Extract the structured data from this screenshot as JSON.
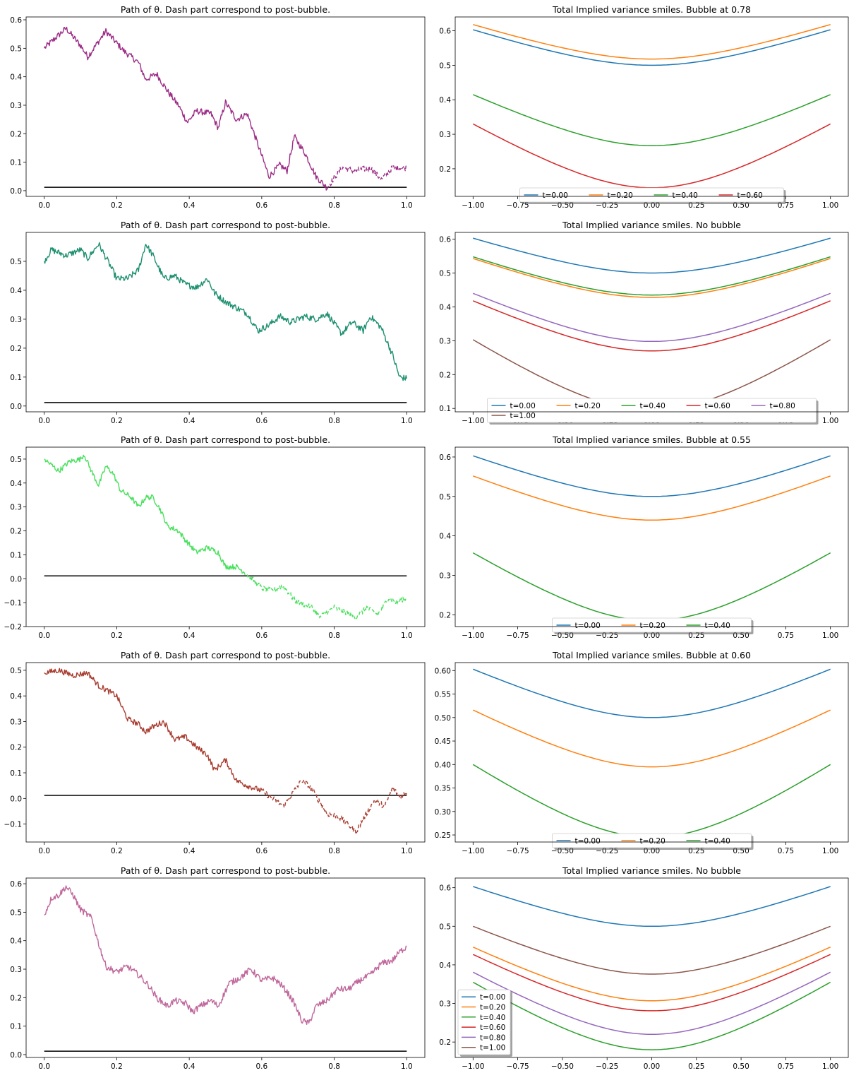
{
  "colors": {
    "C0": "#1f77b4",
    "C1": "#ff7f0e",
    "C2": "#2ca02c",
    "C3": "#d62728",
    "C4": "#9467bd",
    "C5": "#8c564b",
    "threshold": "#000000"
  },
  "chart_data": [
    {
      "type": "line",
      "panel": "path",
      "row": 0,
      "title": "Path of θ. Dash part correspond to post-bubble.",
      "xlim": [
        -0.05,
        1.05
      ],
      "ylim": [
        -0.02,
        0.61
      ],
      "xticks": [
        "0.0",
        "0.2",
        "0.4",
        "0.6",
        "0.8",
        "1.0"
      ],
      "yticks": [
        "0.0",
        "0.1",
        "0.2",
        "0.3",
        "0.4",
        "0.5",
        "0.6"
      ],
      "path_color": "#9c2c86",
      "bubble_at": 0.78,
      "threshold": 0.012,
      "waypoints": [
        [
          0,
          0.5
        ],
        [
          0.06,
          0.57
        ],
        [
          0.1,
          0.51
        ],
        [
          0.12,
          0.47
        ],
        [
          0.17,
          0.56
        ],
        [
          0.22,
          0.49
        ],
        [
          0.26,
          0.45
        ],
        [
          0.28,
          0.39
        ],
        [
          0.31,
          0.41
        ],
        [
          0.34,
          0.35
        ],
        [
          0.37,
          0.3
        ],
        [
          0.395,
          0.24
        ],
        [
          0.42,
          0.28
        ],
        [
          0.46,
          0.27
        ],
        [
          0.48,
          0.22
        ],
        [
          0.5,
          0.31
        ],
        [
          0.53,
          0.25
        ],
        [
          0.56,
          0.27
        ],
        [
          0.59,
          0.16
        ],
        [
          0.62,
          0.05
        ],
        [
          0.65,
          0.09
        ],
        [
          0.67,
          0.07
        ],
        [
          0.69,
          0.19
        ],
        [
          0.72,
          0.13
        ],
        [
          0.75,
          0.05
        ],
        [
          0.78,
          0.01
        ],
        [
          0.82,
          0.08
        ],
        [
          0.86,
          0.07
        ],
        [
          0.9,
          0.08
        ],
        [
          0.93,
          0.04
        ],
        [
          0.96,
          0.08
        ],
        [
          1.0,
          0.08
        ]
      ]
    },
    {
      "type": "line",
      "panel": "smile",
      "row": 0,
      "title": "Total Implied variance smiles. Bubble at 0.78",
      "xlim": [
        -1.1,
        1.1
      ],
      "ylim": [
        0.12,
        0.64
      ],
      "xticks": [
        "−1.00",
        "−0.75",
        "−0.50",
        "−0.25",
        "0.00",
        "0.25",
        "0.50",
        "0.75",
        "1.00"
      ],
      "yticks": [
        "0.2",
        "0.3",
        "0.4",
        "0.5",
        "0.6"
      ],
      "series": [
        {
          "name": "t=0.00",
          "color": "C0",
          "min": 0.5,
          "edge": 0.603
        },
        {
          "name": "t=0.20",
          "color": "C1",
          "min": 0.518,
          "edge": 0.618
        },
        {
          "name": "t=0.40",
          "color": "C2",
          "min": 0.267,
          "edge": 0.415
        },
        {
          "name": "t=0.60",
          "color": "C3",
          "min": 0.145,
          "edge": 0.33
        }
      ],
      "legend": {
        "placement": "lower-center",
        "ncol": 4
      }
    },
    {
      "type": "line",
      "panel": "path",
      "row": 1,
      "title": "Path of θ. Dash part correspond to post-bubble.",
      "xlim": [
        -0.05,
        1.05
      ],
      "ylim": [
        -0.02,
        0.6
      ],
      "xticks": [
        "0.0",
        "0.2",
        "0.4",
        "0.6",
        "0.8",
        "1.0"
      ],
      "yticks": [
        "0.0",
        "0.1",
        "0.2",
        "0.3",
        "0.4",
        "0.5"
      ],
      "path_color": "#1e9070",
      "bubble_at": null,
      "threshold": 0.012,
      "waypoints": [
        [
          0,
          0.5
        ],
        [
          0.02,
          0.54
        ],
        [
          0.06,
          0.52
        ],
        [
          0.1,
          0.54
        ],
        [
          0.12,
          0.51
        ],
        [
          0.15,
          0.56
        ],
        [
          0.18,
          0.49
        ],
        [
          0.2,
          0.44
        ],
        [
          0.23,
          0.44
        ],
        [
          0.26,
          0.47
        ],
        [
          0.28,
          0.56
        ],
        [
          0.3,
          0.52
        ],
        [
          0.33,
          0.44
        ],
        [
          0.36,
          0.45
        ],
        [
          0.39,
          0.42
        ],
        [
          0.42,
          0.41
        ],
        [
          0.45,
          0.44
        ],
        [
          0.47,
          0.39
        ],
        [
          0.5,
          0.36
        ],
        [
          0.53,
          0.34
        ],
        [
          0.56,
          0.32
        ],
        [
          0.59,
          0.26
        ],
        [
          0.62,
          0.28
        ],
        [
          0.65,
          0.31
        ],
        [
          0.68,
          0.29
        ],
        [
          0.72,
          0.31
        ],
        [
          0.75,
          0.3
        ],
        [
          0.78,
          0.32
        ],
        [
          0.82,
          0.25
        ],
        [
          0.85,
          0.29
        ],
        [
          0.88,
          0.26
        ],
        [
          0.9,
          0.31
        ],
        [
          0.93,
          0.27
        ],
        [
          0.96,
          0.18
        ],
        [
          0.98,
          0.1
        ],
        [
          1.0,
          0.095
        ]
      ]
    },
    {
      "type": "line",
      "panel": "smile",
      "row": 1,
      "title": "Total Implied variance smiles. No bubble",
      "xlim": [
        -1.1,
        1.1
      ],
      "ylim": [
        0.09,
        0.62
      ],
      "xticks": [
        "−1.00",
        "−0.75",
        "−0.50",
        "−0.25",
        "0.00",
        "0.25",
        "0.50",
        "0.75",
        "1.00"
      ],
      "yticks": [
        "0.1",
        "0.2",
        "0.3",
        "0.4",
        "0.5",
        "0.6"
      ],
      "series": [
        {
          "name": "t=0.00",
          "color": "C0",
          "min": 0.5,
          "edge": 0.603
        },
        {
          "name": "t=0.20",
          "color": "C1",
          "min": 0.428,
          "edge": 0.543
        },
        {
          "name": "t=0.40",
          "color": "C2",
          "min": 0.435,
          "edge": 0.548
        },
        {
          "name": "t=0.60",
          "color": "C3",
          "min": 0.27,
          "edge": 0.418
        },
        {
          "name": "t=0.80",
          "color": "C4",
          "min": 0.298,
          "edge": 0.44
        },
        {
          "name": "t=1.00",
          "color": "C5",
          "min": 0.095,
          "edge": 0.303
        }
      ],
      "legend": {
        "placement": "lower-center",
        "ncol": 5
      }
    },
    {
      "type": "line",
      "panel": "path",
      "row": 2,
      "title": "Path of θ. Dash part correspond to post-bubble.",
      "xlim": [
        -0.05,
        1.05
      ],
      "ylim": [
        -0.2,
        0.55
      ],
      "xticks": [
        "0.0",
        "0.2",
        "0.4",
        "0.6",
        "0.8",
        "1.0"
      ],
      "yticks": [
        "−0.2",
        "−0.1",
        "0.0",
        "0.1",
        "0.2",
        "0.3",
        "0.4",
        "0.5"
      ],
      "path_color": "#48e05c",
      "bubble_at": 0.55,
      "threshold": 0.012,
      "waypoints": [
        [
          0,
          0.5
        ],
        [
          0.04,
          0.45
        ],
        [
          0.07,
          0.49
        ],
        [
          0.1,
          0.5
        ],
        [
          0.11,
          0.52
        ],
        [
          0.13,
          0.45
        ],
        [
          0.15,
          0.39
        ],
        [
          0.17,
          0.47
        ],
        [
          0.19,
          0.44
        ],
        [
          0.21,
          0.37
        ],
        [
          0.24,
          0.34
        ],
        [
          0.26,
          0.3
        ],
        [
          0.28,
          0.34
        ],
        [
          0.3,
          0.34
        ],
        [
          0.32,
          0.29
        ],
        [
          0.34,
          0.22
        ],
        [
          0.37,
          0.2
        ],
        [
          0.39,
          0.16
        ],
        [
          0.42,
          0.11
        ],
        [
          0.45,
          0.13
        ],
        [
          0.48,
          0.11
        ],
        [
          0.5,
          0.05
        ],
        [
          0.53,
          0.05
        ],
        [
          0.55,
          0.03
        ],
        [
          0.58,
          -0.01
        ],
        [
          0.6,
          -0.04
        ],
        [
          0.63,
          -0.05
        ],
        [
          0.66,
          -0.03
        ],
        [
          0.69,
          -0.09
        ],
        [
          0.72,
          -0.11
        ],
        [
          0.74,
          -0.12
        ],
        [
          0.76,
          -0.16
        ],
        [
          0.8,
          -0.12
        ],
        [
          0.83,
          -0.14
        ],
        [
          0.86,
          -0.16
        ],
        [
          0.89,
          -0.12
        ],
        [
          0.92,
          -0.15
        ],
        [
          0.95,
          -0.08
        ],
        [
          0.97,
          -0.1
        ],
        [
          1.0,
          -0.08
        ]
      ]
    },
    {
      "type": "line",
      "panel": "smile",
      "row": 2,
      "title": "Total Implied variance smiles. Bubble at 0.55",
      "xlim": [
        -1.1,
        1.1
      ],
      "ylim": [
        0.17,
        0.625
      ],
      "xticks": [
        "−1.00",
        "−0.75",
        "−0.50",
        "−0.25",
        "0.00",
        "0.25",
        "0.50",
        "0.75",
        "1.00"
      ],
      "yticks": [
        "0.2",
        "0.3",
        "0.4",
        "0.5",
        "0.6"
      ],
      "series": [
        {
          "name": "t=0.00",
          "color": "C0",
          "min": 0.5,
          "edge": 0.603
        },
        {
          "name": "t=0.20",
          "color": "C1",
          "min": 0.44,
          "edge": 0.552
        },
        {
          "name": "t=0.40",
          "color": "C2",
          "min": 0.185,
          "edge": 0.357
        }
      ],
      "legend": {
        "placement": "lower-center",
        "ncol": 3
      }
    },
    {
      "type": "line",
      "panel": "path",
      "row": 3,
      "title": "Path of θ. Dash part correspond to post-bubble.",
      "xlim": [
        -0.05,
        1.05
      ],
      "ylim": [
        -0.17,
        0.53
      ],
      "xticks": [
        "0.0",
        "0.2",
        "0.4",
        "0.6",
        "0.8",
        "1.0"
      ],
      "yticks": [
        "−0.1",
        "0.0",
        "0.1",
        "0.2",
        "0.3",
        "0.4",
        "0.5"
      ],
      "path_color": "#a83c30",
      "bubble_at": 0.6,
      "threshold": 0.012,
      "waypoints": [
        [
          0,
          0.49
        ],
        [
          0.04,
          0.5
        ],
        [
          0.08,
          0.48
        ],
        [
          0.12,
          0.49
        ],
        [
          0.15,
          0.44
        ],
        [
          0.2,
          0.4
        ],
        [
          0.23,
          0.31
        ],
        [
          0.26,
          0.29
        ],
        [
          0.28,
          0.26
        ],
        [
          0.3,
          0.28
        ],
        [
          0.33,
          0.3
        ],
        [
          0.36,
          0.23
        ],
        [
          0.39,
          0.24
        ],
        [
          0.42,
          0.2
        ],
        [
          0.45,
          0.17
        ],
        [
          0.47,
          0.11
        ],
        [
          0.5,
          0.15
        ],
        [
          0.53,
          0.07
        ],
        [
          0.56,
          0.05
        ],
        [
          0.6,
          0.03
        ],
        [
          0.63,
          0.0
        ],
        [
          0.66,
          -0.03
        ],
        [
          0.69,
          0.03
        ],
        [
          0.71,
          0.07
        ],
        [
          0.73,
          0.05
        ],
        [
          0.75,
          0.01
        ],
        [
          0.78,
          -0.06
        ],
        [
          0.81,
          -0.07
        ],
        [
          0.83,
          -0.09
        ],
        [
          0.86,
          -0.13
        ],
        [
          0.88,
          -0.08
        ],
        [
          0.91,
          -0.01
        ],
        [
          0.94,
          -0.03
        ],
        [
          0.96,
          0.04
        ],
        [
          0.98,
          0.01
        ],
        [
          1.0,
          0.02
        ]
      ]
    },
    {
      "type": "line",
      "panel": "smile",
      "row": 3,
      "title": "Total Implied variance smiles. Bubble at 0.60",
      "xlim": [
        -1.1,
        1.1
      ],
      "ylim": [
        0.235,
        0.617
      ],
      "xticks": [
        "−1.00",
        "−0.75",
        "−0.50",
        "−0.25",
        "0.00",
        "0.25",
        "0.50",
        "0.75",
        "1.00"
      ],
      "yticks": [
        "0.25",
        "0.30",
        "0.35",
        "0.40",
        "0.45",
        "0.50",
        "0.55",
        "0.60"
      ],
      "series": [
        {
          "name": "t=0.00",
          "color": "C0",
          "min": 0.5,
          "edge": 0.603
        },
        {
          "name": "t=0.20",
          "color": "C1",
          "min": 0.395,
          "edge": 0.516
        },
        {
          "name": "t=0.40",
          "color": "C2",
          "min": 0.245,
          "edge": 0.4
        }
      ],
      "legend": {
        "placement": "lower-center",
        "ncol": 3
      }
    },
    {
      "type": "line",
      "panel": "path",
      "row": 4,
      "title": "Path of θ. Dash part correspond to post-bubble.",
      "xlim": [
        -0.05,
        1.05
      ],
      "ylim": [
        -0.01,
        0.62
      ],
      "xticks": [
        "0.0",
        "0.2",
        "0.4",
        "0.6",
        "0.8",
        "1.0"
      ],
      "yticks": [
        "0.0",
        "0.1",
        "0.2",
        "0.3",
        "0.4",
        "0.5",
        "0.6"
      ],
      "path_color": "#c0689c",
      "bubble_at": null,
      "threshold": 0.012,
      "waypoints": [
        [
          0,
          0.49
        ],
        [
          0.02,
          0.55
        ],
        [
          0.04,
          0.56
        ],
        [
          0.06,
          0.59
        ],
        [
          0.08,
          0.56
        ],
        [
          0.1,
          0.51
        ],
        [
          0.13,
          0.48
        ],
        [
          0.15,
          0.39
        ],
        [
          0.17,
          0.31
        ],
        [
          0.2,
          0.29
        ],
        [
          0.23,
          0.31
        ],
        [
          0.26,
          0.28
        ],
        [
          0.29,
          0.24
        ],
        [
          0.31,
          0.2
        ],
        [
          0.34,
          0.17
        ],
        [
          0.36,
          0.19
        ],
        [
          0.39,
          0.18
        ],
        [
          0.41,
          0.15
        ],
        [
          0.43,
          0.17
        ],
        [
          0.46,
          0.19
        ],
        [
          0.48,
          0.17
        ],
        [
          0.51,
          0.25
        ],
        [
          0.54,
          0.27
        ],
        [
          0.57,
          0.3
        ],
        [
          0.6,
          0.26
        ],
        [
          0.63,
          0.27
        ],
        [
          0.65,
          0.25
        ],
        [
          0.67,
          0.22
        ],
        [
          0.69,
          0.18
        ],
        [
          0.71,
          0.12
        ],
        [
          0.73,
          0.11
        ],
        [
          0.75,
          0.17
        ],
        [
          0.78,
          0.19
        ],
        [
          0.81,
          0.23
        ],
        [
          0.84,
          0.23
        ],
        [
          0.87,
          0.26
        ],
        [
          0.9,
          0.28
        ],
        [
          0.93,
          0.32
        ],
        [
          0.96,
          0.33
        ],
        [
          0.98,
          0.36
        ],
        [
          1.0,
          0.38
        ]
      ]
    },
    {
      "type": "line",
      "panel": "smile",
      "row": 4,
      "title": "Total Implied variance smiles. No bubble",
      "xlim": [
        -1.1,
        1.1
      ],
      "ylim": [
        0.16,
        0.625
      ],
      "xticks": [
        "−1.00",
        "−0.75",
        "−0.50",
        "−0.25",
        "0.00",
        "0.25",
        "0.50",
        "0.75",
        "1.00"
      ],
      "yticks": [
        "0.2",
        "0.3",
        "0.4",
        "0.5",
        "0.6"
      ],
      "series": [
        {
          "name": "t=0.00",
          "color": "C0",
          "min": 0.5,
          "edge": 0.603
        },
        {
          "name": "t=0.20",
          "color": "C1",
          "min": 0.307,
          "edge": 0.446
        },
        {
          "name": "t=0.40",
          "color": "C2",
          "min": 0.18,
          "edge": 0.355
        },
        {
          "name": "t=0.60",
          "color": "C3",
          "min": 0.281,
          "edge": 0.427
        },
        {
          "name": "t=0.80",
          "color": "C4",
          "min": 0.22,
          "edge": 0.381
        },
        {
          "name": "t=1.00",
          "color": "C5",
          "min": 0.376,
          "edge": 0.5
        }
      ],
      "legend": {
        "placement": "lower-left",
        "ncol": 1
      }
    }
  ]
}
